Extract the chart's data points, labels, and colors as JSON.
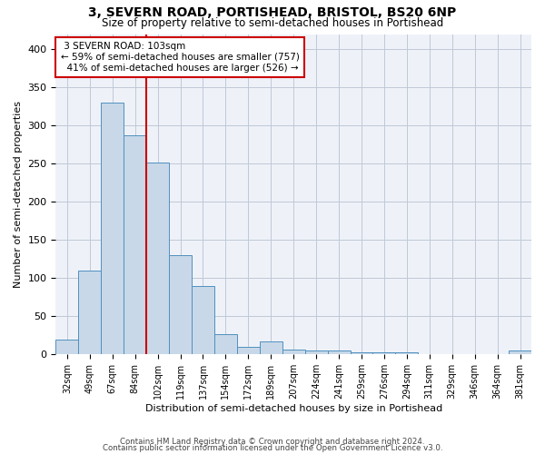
{
  "title": "3, SEVERN ROAD, PORTISHEAD, BRISTOL, BS20 6NP",
  "subtitle": "Size of property relative to semi-detached houses in Portishead",
  "xlabel": "Distribution of semi-detached houses by size in Portishead",
  "ylabel": "Number of semi-detached properties",
  "categories": [
    "32sqm",
    "49sqm",
    "67sqm",
    "84sqm",
    "102sqm",
    "119sqm",
    "137sqm",
    "154sqm",
    "172sqm",
    "189sqm",
    "207sqm",
    "224sqm",
    "241sqm",
    "259sqm",
    "276sqm",
    "294sqm",
    "311sqm",
    "329sqm",
    "346sqm",
    "364sqm",
    "381sqm"
  ],
  "values": [
    20,
    110,
    330,
    287,
    252,
    130,
    90,
    27,
    10,
    17,
    6,
    5,
    5,
    3,
    3,
    3,
    1,
    0,
    1,
    0,
    5
  ],
  "bar_color": "#c8d8e8",
  "bar_edge_color": "#5090c0",
  "ref_line_x": 3.5,
  "ref_line_label": "3 SEVERN ROAD: 103sqm",
  "pct_smaller": 59,
  "n_smaller": 757,
  "pct_larger": 41,
  "n_larger": 526,
  "ylim": [
    0,
    420
  ],
  "yticks": [
    0,
    50,
    100,
    150,
    200,
    250,
    300,
    350,
    400
  ],
  "annotation_box_color": "#ffffff",
  "annotation_box_edge": "#cc0000",
  "vline_color": "#cc0000",
  "grid_color": "#c0c8d8",
  "bg_color": "#eef2f8",
  "footer1": "Contains HM Land Registry data © Crown copyright and database right 2024.",
  "footer2": "Contains public sector information licensed under the Open Government Licence v3.0."
}
